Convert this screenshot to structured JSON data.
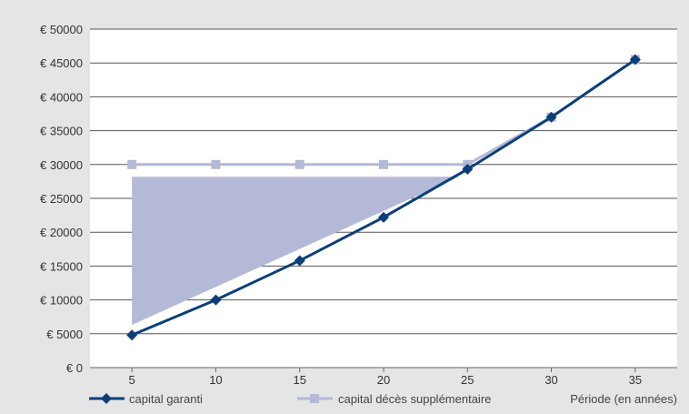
{
  "chart_data": {
    "type": "line",
    "x": [
      5,
      10,
      15,
      20,
      25,
      30,
      35
    ],
    "xlabel": "Période (en années)",
    "ylabel": "",
    "title": "",
    "ylim": [
      0,
      50000
    ],
    "xlim": [
      2.5,
      37.5
    ],
    "yticks": [
      0,
      5000,
      10000,
      15000,
      20000,
      25000,
      30000,
      35000,
      40000,
      45000,
      50000
    ],
    "ytick_labels": [
      "€ 0",
      "€ 5000",
      "€ 10000",
      "€ 15000",
      "€ 20000",
      "€ 25000",
      "€ 30000",
      "€ 35000",
      "€ 40000",
      "€ 45000",
      "€ 50000"
    ],
    "xtick_labels": [
      "5",
      "10",
      "15",
      "20",
      "25",
      "30",
      "35"
    ],
    "grid": "horizontal",
    "legend_position": "bottom",
    "series": [
      {
        "name": "capital garanti",
        "color": "#0b3f7a",
        "marker": "diamond",
        "values": [
          4800,
          10000,
          15800,
          22200,
          29300,
          37000,
          45500
        ]
      },
      {
        "name": "capital décès supplémentaire",
        "color": "#b3b9d6",
        "marker": "square",
        "values": [
          30000,
          30000,
          30000,
          30000,
          30000,
          37000,
          45500
        ]
      }
    ],
    "shaded_region": {
      "color": "#b3b9d6",
      "vertices": [
        [
          5,
          6300
        ],
        [
          5,
          28200
        ],
        [
          24.5,
          28200
        ]
      ]
    }
  }
}
